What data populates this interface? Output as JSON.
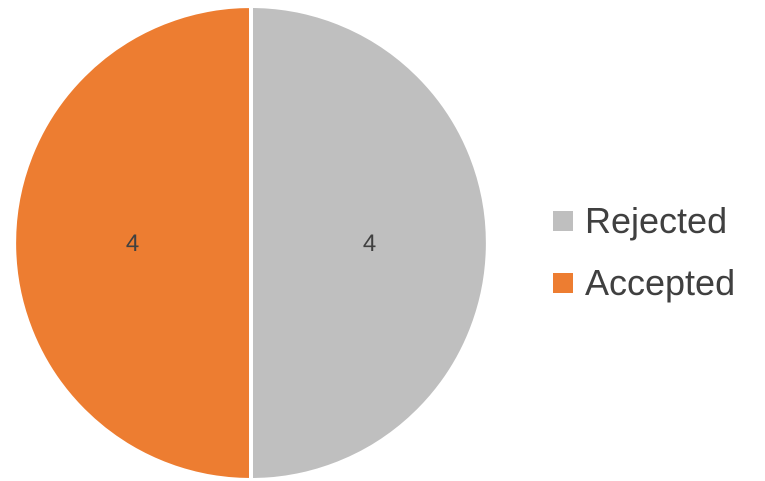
{
  "chart_data": {
    "type": "pie",
    "title": "",
    "legend_position": "right",
    "slices": [
      {
        "name": "Rejected",
        "value": 4,
        "label": "4",
        "color": "#BFBFBF"
      },
      {
        "name": "Accepted",
        "value": 4,
        "label": "4",
        "color": "#ED7D31"
      }
    ]
  }
}
